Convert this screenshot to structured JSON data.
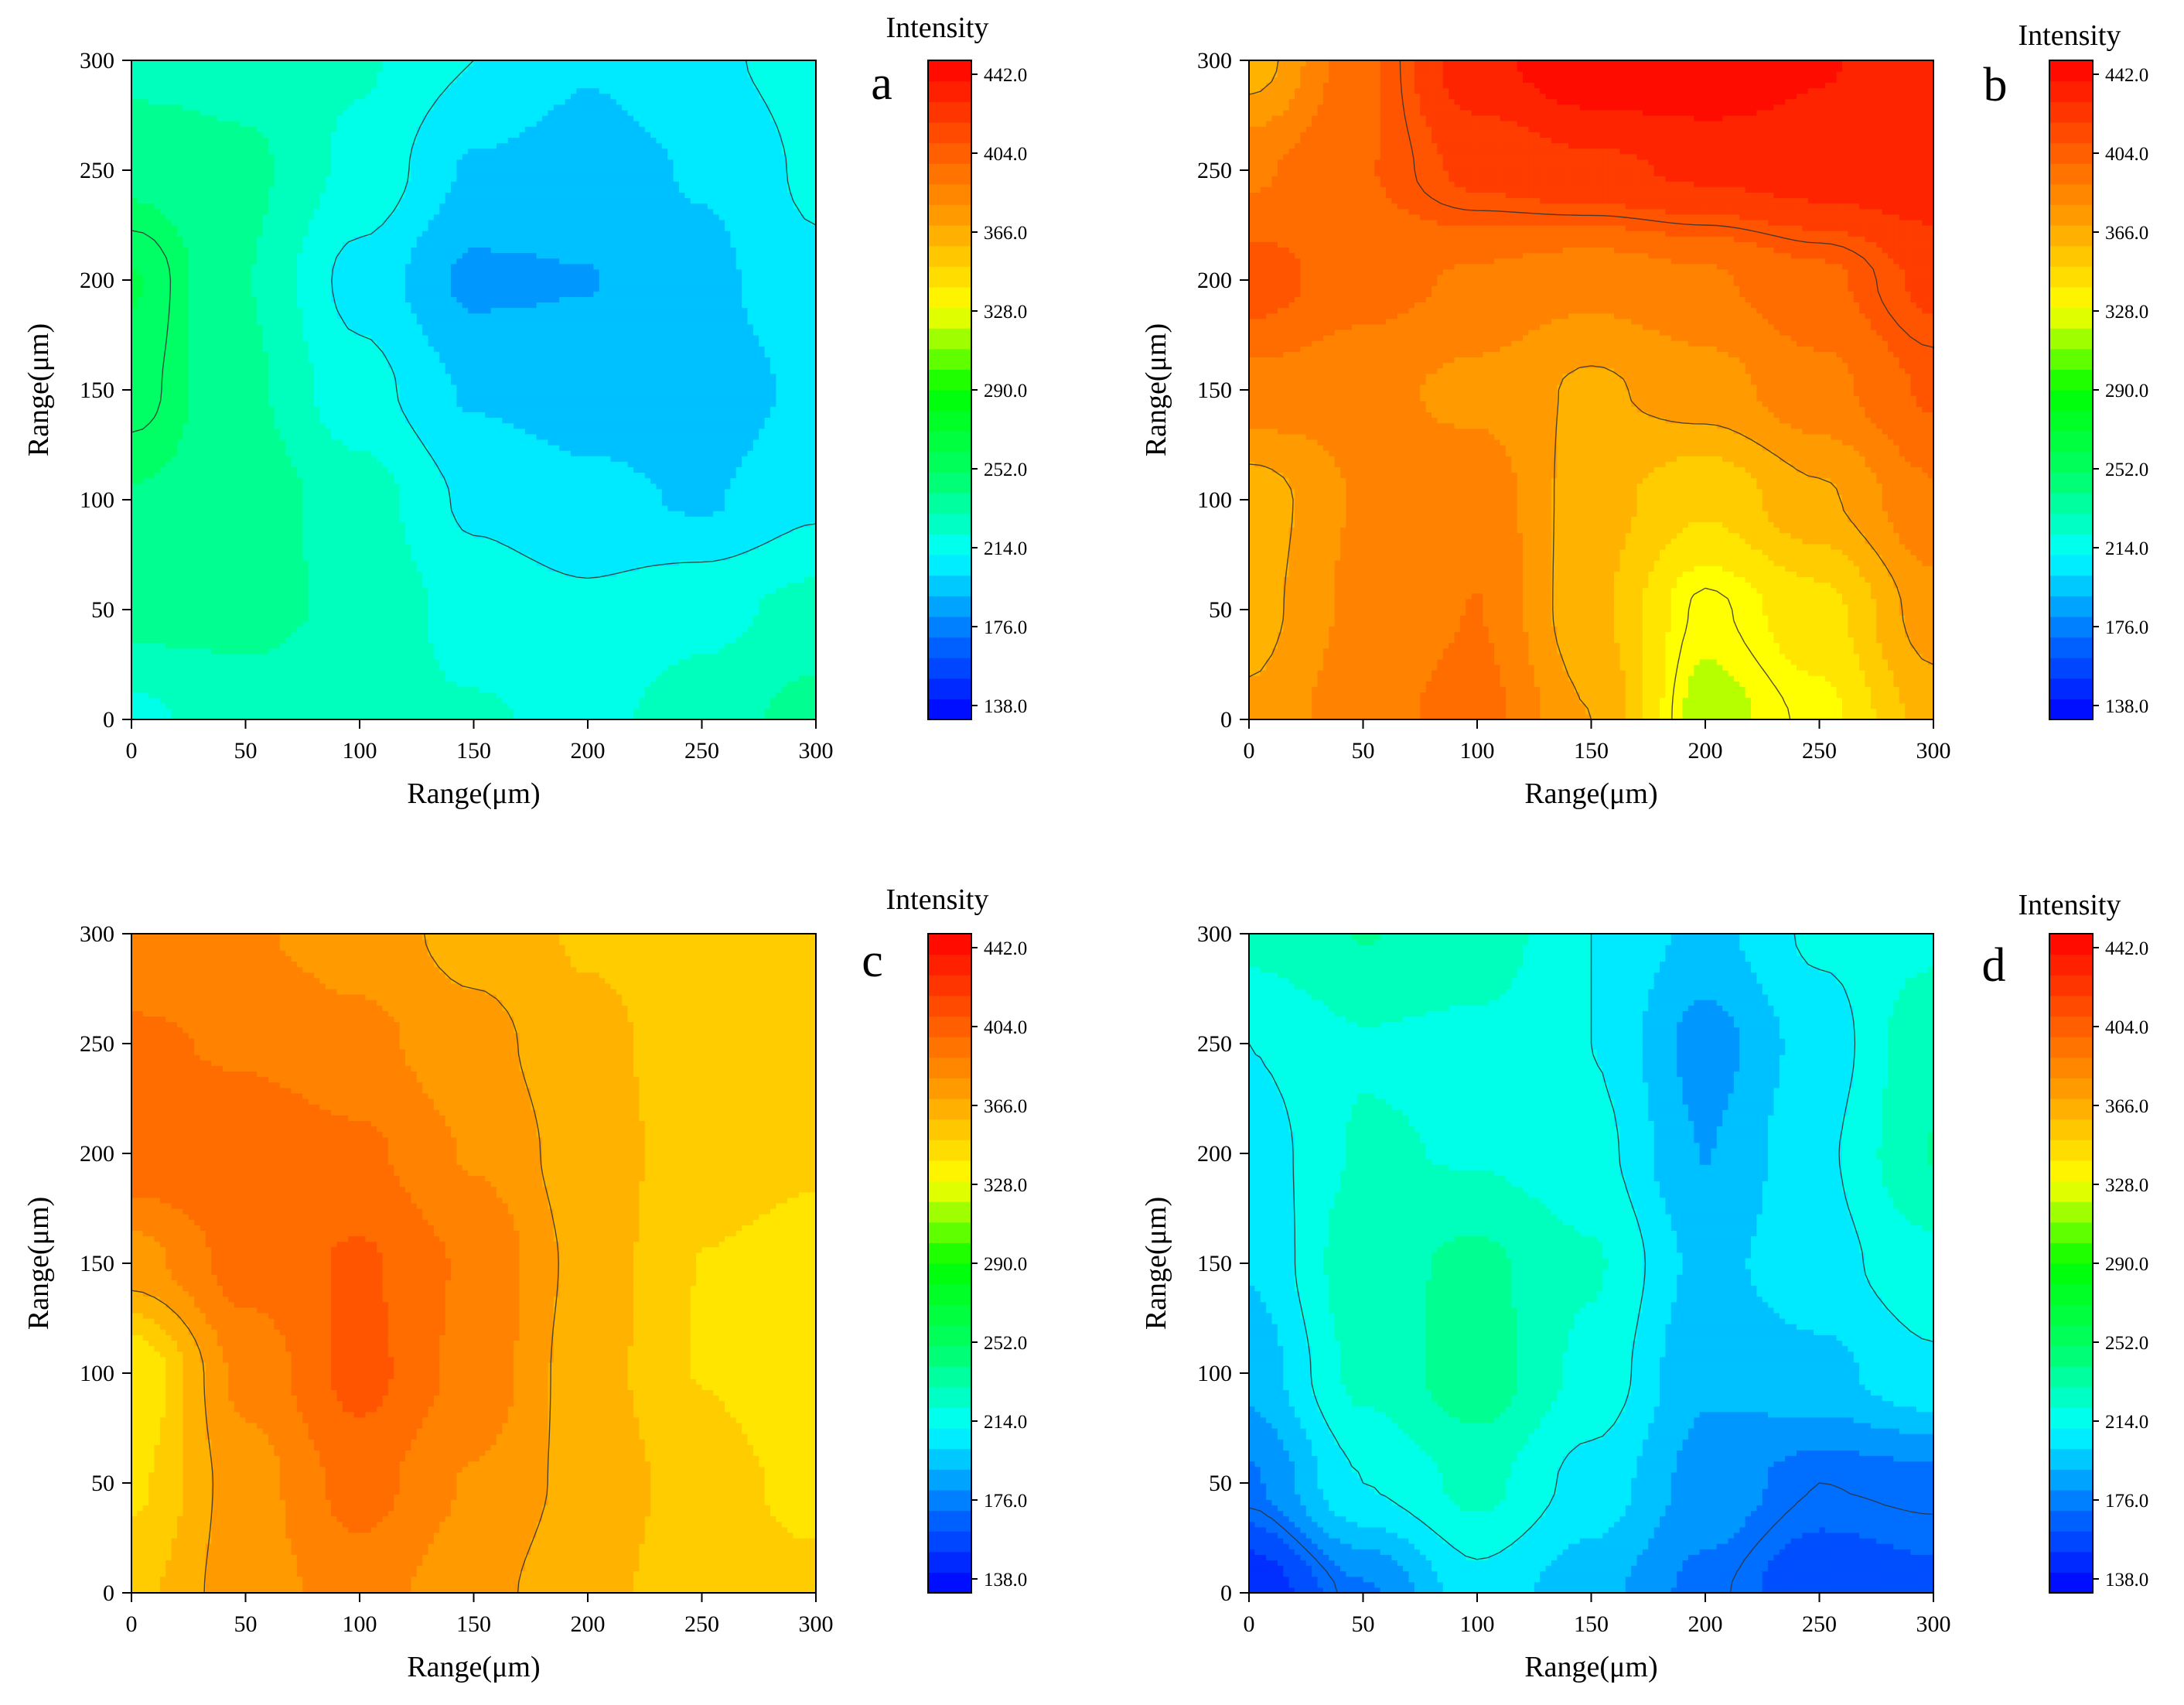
{
  "chart_data": [
    {
      "type": "heatmap",
      "panel_label": "a",
      "xlabel": "Range(μm)",
      "ylabel": "Range(μm)",
      "xlim": [
        0,
        300
      ],
      "ylim": [
        0,
        300
      ],
      "x_ticks": [
        "0",
        "50",
        "100",
        "150",
        "200",
        "250",
        "300"
      ],
      "y_ticks": [
        "0",
        "50",
        "100",
        "150",
        "200",
        "250",
        "300"
      ],
      "colorbar": {
        "title": "Intensity",
        "range": [
          138,
          442
        ],
        "tick_labels": [
          "138.0",
          "176.0",
          "214.0",
          "252.0",
          "290.0",
          "328.0",
          "366.0",
          "404.0",
          "442.0"
        ]
      },
      "x": [
        0,
        50,
        100,
        150,
        200,
        250,
        300
      ],
      "y": [
        0,
        50,
        100,
        150,
        200,
        250,
        300
      ],
      "z": [
        [
          222,
          232,
          228,
          226,
          222,
          230,
          240
        ],
        [
          240,
          238,
          234,
          220,
          216,
          222,
          228
        ],
        [
          246,
          242,
          230,
          212,
          206,
          202,
          212
        ],
        [
          255,
          238,
          218,
          202,
          198,
          196,
          206
        ],
        [
          258,
          236,
          210,
          190,
          192,
          200,
          212
        ],
        [
          244,
          238,
          222,
          202,
          198,
          204,
          216
        ],
        [
          232,
          232,
          226,
          214,
          204,
          212,
          218
        ]
      ]
    },
    {
      "type": "heatmap",
      "panel_label": "b",
      "xlabel": "Range(μm)",
      "ylabel": "Range(μm)",
      "xlim": [
        0,
        300
      ],
      "ylim": [
        0,
        300
      ],
      "x_ticks": [
        "0",
        "50",
        "100",
        "150",
        "200",
        "250",
        "300"
      ],
      "y_ticks": [
        "0",
        "50",
        "100",
        "150",
        "200",
        "250",
        "300"
      ],
      "colorbar": {
        "title": "Intensity",
        "range": [
          138,
          442
        ],
        "tick_labels": [
          "138.0",
          "176.0",
          "214.0",
          "252.0",
          "290.0",
          "328.0",
          "366.0",
          "404.0",
          "442.0"
        ]
      },
      "x": [
        0,
        50,
        100,
        150,
        200,
        250,
        300
      ],
      "y": [
        0,
        50,
        100,
        150,
        200,
        250,
        300
      ],
      "z": [
        [
          368,
          384,
          392,
          366,
          318,
          330,
          360
        ],
        [
          362,
          380,
          388,
          358,
          326,
          340,
          372
        ],
        [
          360,
          378,
          384,
          360,
          346,
          364,
          386
        ],
        [
          384,
          380,
          374,
          364,
          372,
          384,
          400
        ],
        [
          404,
          392,
          386,
          380,
          386,
          396,
          412
        ],
        [
          386,
          398,
          412,
          418,
          422,
          426,
          428
        ],
        [
          360,
          396,
          428,
          440,
          442,
          432,
          424
        ]
      ]
    },
    {
      "type": "heatmap",
      "panel_label": "c",
      "xlabel": "Range(μm)",
      "ylabel": "Range(μm)",
      "xlim": [
        0,
        300
      ],
      "ylim": [
        0,
        300
      ],
      "x_ticks": [
        "0",
        "50",
        "100",
        "150",
        "200",
        "250",
        "300"
      ],
      "y_ticks": [
        "0",
        "50",
        "100",
        "150",
        "200",
        "250",
        "300"
      ],
      "colorbar": {
        "title": "Intensity",
        "range": [
          138,
          442
        ],
        "tick_labels": [
          "138.0",
          "176.0",
          "214.0",
          "252.0",
          "290.0",
          "328.0",
          "366.0",
          "404.0",
          "442.0"
        ]
      },
      "x": [
        0,
        50,
        100,
        150,
        200,
        250,
        300
      ],
      "y": [
        0,
        50,
        100,
        150,
        200,
        250,
        300
      ],
      "z": [
        [
          352,
          372,
          382,
          370,
          358,
          350,
          348
        ],
        [
          342,
          372,
          392,
          376,
          362,
          350,
          340
        ],
        [
          334,
          380,
          402,
          384,
          360,
          344,
          334
        ],
        [
          372,
          392,
          400,
          386,
          362,
          344,
          340
        ],
        [
          396,
          396,
          390,
          376,
          360,
          350,
          346
        ],
        [
          390,
          386,
          380,
          370,
          358,
          350,
          348
        ],
        [
          378,
          378,
          372,
          362,
          354,
          350,
          350
        ]
      ]
    },
    {
      "type": "heatmap",
      "panel_label": "d",
      "xlabel": "Range(μm)",
      "ylabel": "Range(μm)",
      "xlim": [
        0,
        300
      ],
      "ylim": [
        0,
        300
      ],
      "x_ticks": [
        "0",
        "50",
        "100",
        "150",
        "200",
        "250",
        "300"
      ],
      "y_ticks": [
        "0",
        "50",
        "100",
        "150",
        "200",
        "250",
        "300"
      ],
      "colorbar": {
        "title": "Intensity",
        "range": [
          138,
          442
        ],
        "tick_labels": [
          "138.0",
          "176.0",
          "214.0",
          "252.0",
          "290.0",
          "328.0",
          "366.0",
          "404.0",
          "442.0"
        ]
      },
      "x": [
        0,
        50,
        100,
        150,
        200,
        250,
        300
      ],
      "y": [
        0,
        50,
        100,
        150,
        200,
        250,
        300
      ],
      "z": [
        [
          150,
          180,
          210,
          196,
          178,
          162,
          168
        ],
        [
          180,
          214,
          228,
          210,
          188,
          176,
          178
        ],
        [
          196,
          228,
          242,
          222,
          194,
          200,
          212
        ],
        [
          204,
          232,
          238,
          226,
          200,
          210,
          222
        ],
        [
          208,
          226,
          224,
          218,
          192,
          212,
          236
        ],
        [
          214,
          224,
          222,
          214,
          188,
          208,
          234
        ],
        [
          228,
          236,
          232,
          214,
          200,
          216,
          222
        ]
      ]
    }
  ]
}
